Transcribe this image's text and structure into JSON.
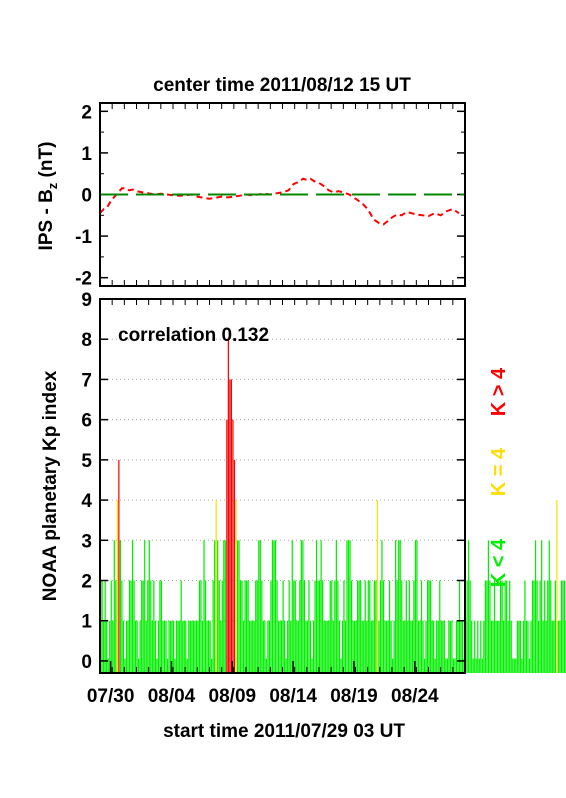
{
  "chart_data": [
    {
      "type": "line",
      "title": "center time 2011/08/12 15 UT",
      "ylabel": "IPS - B",
      "ylabel_subscript": "z",
      "ylabel_unit": " (nT)",
      "ylim": [
        -2.2,
        2.2
      ],
      "yticks": [
        -2,
        -1,
        0,
        1,
        2
      ],
      "x_unit": "days after 2011/07/29 03 UT",
      "xlim": [
        0,
        30
      ],
      "grid": false,
      "series": [
        {
          "name": "",
          "color": "#ff0000",
          "style": "dashed",
          "x": [
            0.0,
            0.3,
            0.6,
            0.9,
            1.2,
            1.5,
            1.8,
            2.1,
            2.4,
            2.7,
            3.0,
            3.5,
            4.0,
            4.5,
            5.0,
            5.5,
            6.0,
            6.5,
            7.0,
            7.5,
            8.0,
            8.5,
            9.0,
            9.5,
            10.0,
            10.5,
            11.0,
            11.5,
            12.0,
            12.5,
            13.0,
            13.5,
            14.0,
            14.5,
            15.0,
            15.5,
            15.9,
            16.3,
            16.7,
            17.0,
            17.3,
            17.6,
            18.0,
            18.4,
            18.8,
            19.2,
            19.6,
            20.0,
            20.5,
            21.0,
            21.5,
            22.0,
            22.5,
            23.0,
            23.3,
            23.6,
            24.0,
            24.4,
            24.8,
            25.2,
            25.6,
            26.0,
            26.5,
            27.0,
            27.5,
            28.0,
            28.5,
            29.0,
            29.5
          ],
          "values": [
            -0.45,
            -0.35,
            -0.3,
            -0.15,
            -0.05,
            0.05,
            0.15,
            0.15,
            0.1,
            0.12,
            0.08,
            0.05,
            0.03,
            0.0,
            0.02,
            0.0,
            -0.02,
            -0.03,
            -0.02,
            0.0,
            -0.05,
            -0.08,
            -0.1,
            -0.08,
            -0.05,
            -0.07,
            -0.05,
            -0.03,
            0.0,
            -0.02,
            0.0,
            0.02,
            0.0,
            0.03,
            0.05,
            0.1,
            0.25,
            0.3,
            0.38,
            0.35,
            0.38,
            0.32,
            0.28,
            0.2,
            0.1,
            0.05,
            0.08,
            0.05,
            0.0,
            -0.1,
            -0.2,
            -0.35,
            -0.6,
            -0.7,
            -0.72,
            -0.65,
            -0.55,
            -0.48,
            -0.5,
            -0.42,
            -0.45,
            -0.48,
            -0.5,
            -0.52,
            -0.45,
            -0.5,
            -0.4,
            -0.35,
            -0.45
          ]
        },
        {
          "name": "",
          "color": "#008800",
          "style": "long-dash",
          "x": [
            0,
            30
          ],
          "values": [
            0,
            0
          ]
        }
      ]
    },
    {
      "type": "bar",
      "title": "",
      "annotation": "correlation 0.132",
      "ylabel": "NOAA planetary Kp index",
      "xlabel": "start time 2011/07/29 03 UT",
      "xticks": [
        "07/30",
        "08/04",
        "08/09",
        "08/14",
        "08/19",
        "08/24"
      ],
      "xtick_positions_days": [
        0.875,
        5.875,
        10.875,
        15.875,
        20.875,
        25.875
      ],
      "xlim": [
        0,
        30
      ],
      "ylim": [
        -0.3,
        9
      ],
      "yticks": [
        0,
        1,
        2,
        3,
        4,
        5,
        6,
        7,
        8,
        9
      ],
      "grid": "horizontal dotted",
      "bin_days": 0.125,
      "legend": [
        {
          "label": "K > 4",
          "color": "#ff0000"
        },
        {
          "label": "K = 4",
          "color": "#ffdd00"
        },
        {
          "label": "K < 4",
          "color": "#00ee00"
        }
      ],
      "values": [
        2,
        2,
        1,
        2,
        1,
        0,
        1,
        2,
        1,
        3,
        2,
        4,
        5,
        3,
        2,
        1,
        0,
        1,
        1,
        2,
        2,
        3,
        2,
        1,
        1,
        0,
        1,
        2,
        2,
        3,
        1,
        2,
        3,
        2,
        1,
        2,
        1,
        0,
        1,
        2,
        2,
        1,
        1,
        1,
        0,
        1,
        1,
        1,
        1,
        0,
        1,
        1,
        1,
        2,
        1,
        1,
        1,
        0,
        1,
        1,
        1,
        1,
        1,
        1,
        1,
        2,
        2,
        1,
        3,
        2,
        1,
        1,
        1,
        0,
        2,
        3,
        4,
        3,
        2,
        1,
        2,
        3,
        3,
        6,
        8,
        7,
        7,
        6,
        5,
        4,
        3,
        3,
        2,
        2,
        1,
        2,
        2,
        2,
        1,
        1,
        1,
        1,
        2,
        2,
        3,
        3,
        2,
        1,
        1,
        0,
        1,
        1,
        2,
        3,
        3,
        3,
        2,
        1,
        1,
        1,
        2,
        1,
        0,
        1,
        2,
        1,
        3,
        2,
        2,
        1,
        1,
        2,
        3,
        3,
        2,
        1,
        1,
        2,
        1,
        0,
        1,
        2,
        3,
        2,
        2,
        3,
        2,
        1,
        1,
        1,
        1,
        2,
        2,
        1,
        2,
        3,
        2,
        1,
        0,
        1,
        2,
        1,
        3,
        3,
        3,
        2,
        1,
        1,
        1,
        2,
        2,
        2,
        1,
        1,
        2,
        1,
        2,
        2,
        1,
        1,
        2,
        2,
        4,
        1,
        2,
        3,
        2,
        1,
        1,
        1,
        2,
        1,
        0,
        1,
        3,
        2,
        3,
        3,
        2,
        1,
        1,
        2,
        1,
        2,
        1,
        1,
        2,
        3,
        3,
        1,
        1,
        2,
        1,
        0,
        1,
        2,
        2,
        2,
        1,
        1,
        0,
        1,
        1,
        2,
        1,
        1,
        1,
        0,
        0,
        1,
        1,
        1,
        0,
        0,
        1,
        1,
        2,
        1,
        1,
        0,
        1,
        2,
        3,
        2,
        1,
        0,
        1,
        0,
        1,
        0,
        1,
        0,
        1,
        2,
        2,
        3,
        2,
        1,
        1,
        2,
        1,
        1,
        1,
        2,
        2,
        1,
        2,
        2,
        1,
        2,
        1,
        0,
        0,
        0,
        1,
        1,
        1,
        0,
        1,
        2,
        1,
        1,
        0,
        1,
        2,
        2,
        3,
        2,
        1,
        2,
        3,
        1,
        2,
        1,
        2,
        3,
        2,
        1,
        1,
        2,
        4,
        1,
        1,
        2,
        2,
        2,
        1,
        1,
        2,
        3,
        2,
        1,
        1,
        1,
        2,
        2,
        2,
        2,
        2,
        1,
        1,
        1,
        0,
        0,
        1,
        1,
        2,
        1,
        1,
        1
      ]
    }
  ]
}
